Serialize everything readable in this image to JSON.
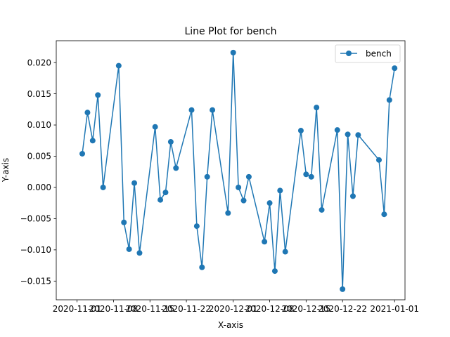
{
  "chart_data": {
    "type": "line",
    "title": "Line Plot for bench",
    "xlabel": "X-axis",
    "ylabel": "Y-axis",
    "x_ticks": [
      "2020-11-01",
      "2020-11-08",
      "2020-11-15",
      "2020-11-22",
      "2020-12-01",
      "2020-12-08",
      "2020-12-15",
      "2020-12-22",
      "2021-01-01"
    ],
    "y_ticks": [
      "−0.015",
      "−0.010",
      "−0.005",
      "0.000",
      "0.005",
      "0.010",
      "0.015",
      "0.020"
    ],
    "xlim": [
      "2020-10-28",
      "2021-01-03"
    ],
    "ylim": [
      -0.018,
      0.0235
    ],
    "grid": false,
    "legend_position": "top-right",
    "series": [
      {
        "name": "bench",
        "color": "#1f77b4",
        "marker": "circle",
        "points": [
          {
            "x": "2020-11-02",
            "y": 0.0054
          },
          {
            "x": "2020-11-03",
            "y": 0.012
          },
          {
            "x": "2020-11-04",
            "y": 0.0075
          },
          {
            "x": "2020-11-05",
            "y": 0.0148
          },
          {
            "x": "2020-11-06",
            "y": 0.0
          },
          {
            "x": "2020-11-09",
            "y": 0.0195
          },
          {
            "x": "2020-11-10",
            "y": -0.0056
          },
          {
            "x": "2020-11-11",
            "y": -0.0099
          },
          {
            "x": "2020-11-12",
            "y": 0.0007
          },
          {
            "x": "2020-11-13",
            "y": -0.0105
          },
          {
            "x": "2020-11-16",
            "y": 0.0097
          },
          {
            "x": "2020-11-17",
            "y": -0.002
          },
          {
            "x": "2020-11-18",
            "y": -0.0008
          },
          {
            "x": "2020-11-19",
            "y": 0.0073
          },
          {
            "x": "2020-11-20",
            "y": 0.0031
          },
          {
            "x": "2020-11-23",
            "y": 0.0124
          },
          {
            "x": "2020-11-24",
            "y": -0.0062
          },
          {
            "x": "2020-11-25",
            "y": -0.0128
          },
          {
            "x": "2020-11-26",
            "y": 0.0017
          },
          {
            "x": "2020-11-27",
            "y": 0.0124
          },
          {
            "x": "2020-11-30",
            "y": -0.0041
          },
          {
            "x": "2020-12-01",
            "y": 0.0216
          },
          {
            "x": "2020-12-02",
            "y": 0.0
          },
          {
            "x": "2020-12-03",
            "y": -0.0021
          },
          {
            "x": "2020-12-04",
            "y": 0.0017
          },
          {
            "x": "2020-12-07",
            "y": -0.0087
          },
          {
            "x": "2020-12-08",
            "y": -0.0025
          },
          {
            "x": "2020-12-09",
            "y": -0.0134
          },
          {
            "x": "2020-12-10",
            "y": -0.0005
          },
          {
            "x": "2020-12-11",
            "y": -0.0103
          },
          {
            "x": "2020-12-14",
            "y": 0.0091
          },
          {
            "x": "2020-12-15",
            "y": 0.0021
          },
          {
            "x": "2020-12-16",
            "y": 0.0017
          },
          {
            "x": "2020-12-17",
            "y": 0.0128
          },
          {
            "x": "2020-12-18",
            "y": -0.0036
          },
          {
            "x": "2020-12-21",
            "y": 0.0092
          },
          {
            "x": "2020-12-22",
            "y": -0.0163
          },
          {
            "x": "2020-12-23",
            "y": 0.0085
          },
          {
            "x": "2020-12-24",
            "y": -0.0014
          },
          {
            "x": "2020-12-25",
            "y": 0.0084
          },
          {
            "x": "2020-12-29",
            "y": 0.0044
          },
          {
            "x": "2020-12-30",
            "y": -0.0043
          },
          {
            "x": "2020-12-31",
            "y": 0.014
          },
          {
            "x": "2021-01-01",
            "y": 0.0191
          }
        ]
      }
    ]
  }
}
